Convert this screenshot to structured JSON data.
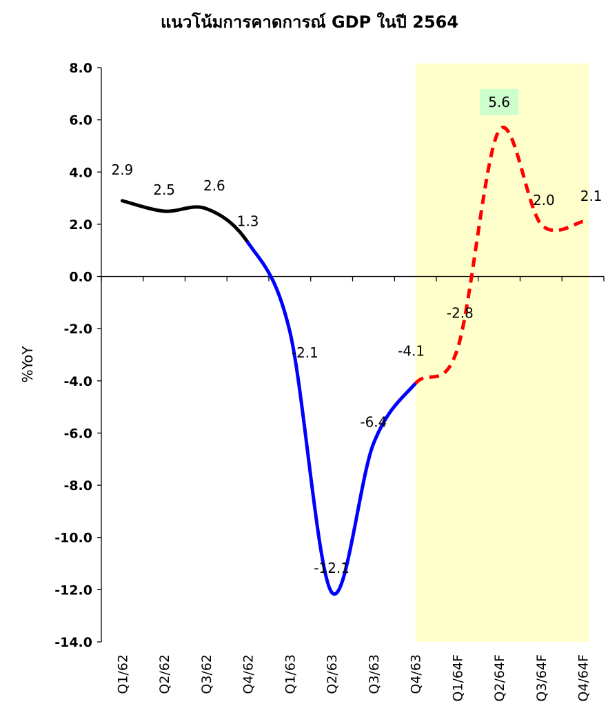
{
  "chart_data": {
    "type": "line",
    "title": "แนวโน้มการคาดการณ์ GDP ในปี 2564",
    "xlabel": "",
    "ylabel": "%YoY",
    "categories": [
      "Q1/62",
      "Q2/62",
      "Q3/62",
      "Q4/62",
      "Q1/63",
      "Q2/63",
      "Q3/63",
      "Q4/63",
      "Q1/64F",
      "Q2/64F",
      "Q3/64F",
      "Q4/64F"
    ],
    "values": [
      2.9,
      2.5,
      2.6,
      1.3,
      -2.1,
      -12.1,
      -6.4,
      -4.1,
      -2.8,
      5.6,
      2.0,
      2.1
    ],
    "data_labels": [
      "2.9",
      "2.5",
      "2.6",
      "1.3",
      "-2.1",
      "-12.1",
      "-6.4",
      "-4.1",
      "-2.8",
      "5.6",
      "2.0",
      "2.1"
    ],
    "ylim": [
      -14,
      8
    ],
    "y_ticks": [
      "8.0",
      "6.0",
      "4.0",
      "2.0",
      "0.0",
      "-2.0",
      "-4.0",
      "-6.0",
      "-8.0",
      "-10.0",
      "-12.0",
      "-14.0"
    ],
    "grid": false,
    "segments": [
      {
        "from": 0,
        "to": 3,
        "color": "#000000",
        "style": "solid"
      },
      {
        "from": 3,
        "to": 7,
        "color": "#0000ff",
        "style": "solid"
      },
      {
        "from": 7,
        "to": 11,
        "color": "#ff0000",
        "style": "dashed"
      }
    ],
    "forecast_region": {
      "from_category": "Q4/63",
      "to_category": "Q4/64F",
      "color": "#ffffcc"
    },
    "highlighted_label": {
      "index": 9,
      "color": "#ccffcc"
    }
  }
}
